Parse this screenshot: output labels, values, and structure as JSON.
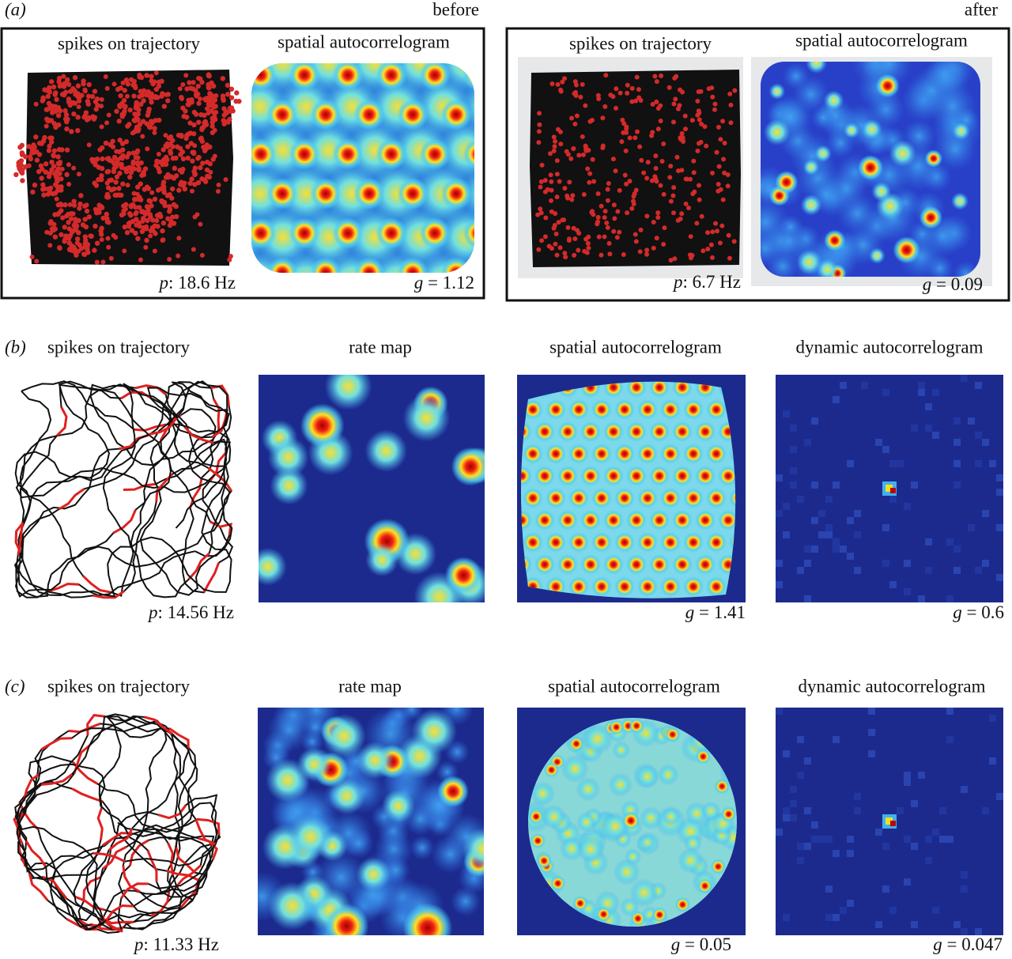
{
  "panels": {
    "a": {
      "label": "(a)",
      "before": {
        "heading": "before",
        "titles": [
          "spikes on trajectory",
          "spatial autocorrelogram"
        ],
        "rate": {
          "symbol": "p",
          "text": ": 18.6 Hz"
        },
        "gridness": {
          "symbol": "g",
          "text": " = 1.12"
        }
      },
      "after": {
        "heading": "after",
        "titles": [
          "spikes on trajectory",
          "spatial autocorrelogram"
        ],
        "rate": {
          "symbol": "p",
          "text": ": 6.7 Hz"
        },
        "gridness": {
          "symbol": "g",
          "text": " = 0.09"
        }
      }
    },
    "b": {
      "label": "(b)",
      "titles": [
        "spikes on trajectory",
        "rate map",
        "spatial autocorrelogram",
        "dynamic autocorrelogram"
      ],
      "rate": {
        "symbol": "p",
        "text": ": 14.56 Hz"
      },
      "gridness": [
        {
          "symbol": "g",
          "text": " = 1.41"
        },
        {
          "symbol": "g",
          "text": " = 0.6"
        }
      ]
    },
    "c": {
      "label": "(c)",
      "titles": [
        "spikes on trajectory",
        "rate map",
        "spatial autocorrelogram",
        "dynamic autocorrelogram"
      ],
      "rate": {
        "symbol": "p",
        "text": ": 11.33 Hz"
      },
      "gridness": [
        {
          "symbol": "g",
          "text": " = 0.05"
        },
        {
          "symbol": "g",
          "text": " = 0.047"
        }
      ]
    }
  }
}
